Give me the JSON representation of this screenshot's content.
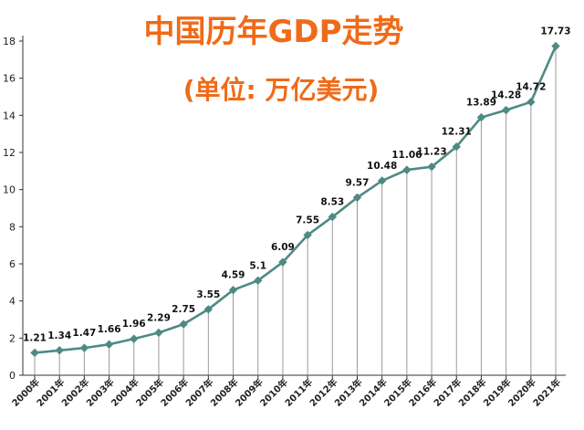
{
  "chart_data": {
    "type": "line",
    "title": "中国历年GDP走势",
    "subtitle": "(单位: 万亿美元)",
    "xlabel": "",
    "ylabel": "",
    "categories": [
      "2000年",
      "2001年",
      "2002年",
      "2003年",
      "2004年",
      "2005年",
      "2006年",
      "2007年",
      "2008年",
      "2009年",
      "2010年",
      "2011年",
      "2012年",
      "2013年",
      "2014年",
      "2015年",
      "2016年",
      "2017年",
      "2018年",
      "2019年",
      "2020年",
      "2021年"
    ],
    "series": [
      {
        "values": [
          1.21,
          1.34,
          1.47,
          1.66,
          1.96,
          2.29,
          2.75,
          3.55,
          4.59,
          5.1,
          6.09,
          7.55,
          8.53,
          9.57,
          10.48,
          11.06,
          11.23,
          12.31,
          13.89,
          14.28,
          14.72,
          17.73
        ],
        "labels": [
          "1.21",
          "1.34",
          "1.47",
          "1.66",
          "1.96",
          "2.29",
          "2.75",
          "3.55",
          "4.59",
          "5.1",
          "6.09",
          "7.55",
          "8.53",
          "9.57",
          "10.48",
          "11.06",
          "11.23",
          "12.31",
          "13.89",
          "14.28",
          "14.72",
          "17.73"
        ]
      }
    ],
    "ylim": [
      0,
      18
    ],
    "yticks": [
      "0",
      "2",
      "4",
      "6",
      "8",
      "10",
      "12",
      "14",
      "16",
      "18"
    ],
    "grid": "vertical drop lines from each point",
    "legend": "none",
    "colors": {
      "line": "#4e8a84",
      "marker": "#4e8a84",
      "title": "#f06a18",
      "axis": "#333333",
      "droplines": "#9a9a9a"
    }
  }
}
